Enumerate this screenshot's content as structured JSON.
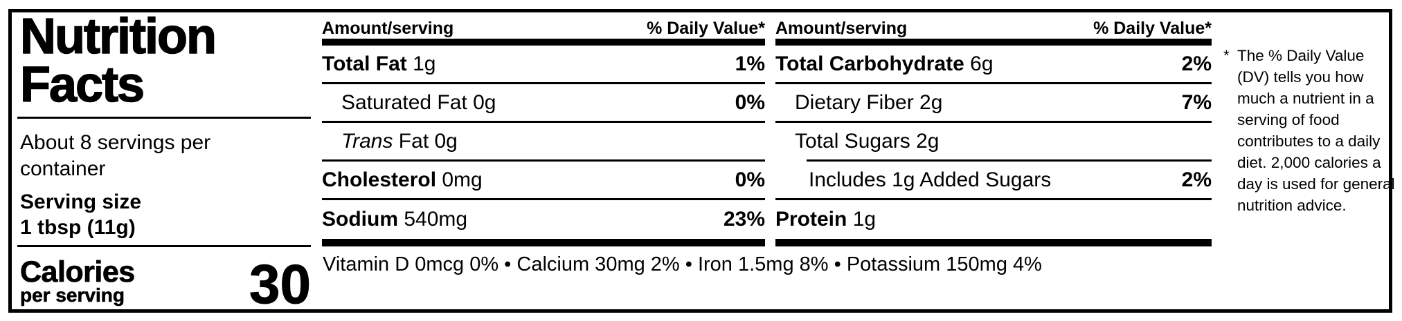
{
  "label": {
    "title": "Nutrition Facts",
    "servings_per_container": "About 8 servings per container",
    "serving_size_label": "Serving size",
    "serving_size_value": "1 tbsp (11g)",
    "calories_label": "Calories",
    "calories_sublabel": "per serving",
    "calories_value": "30"
  },
  "columns": [
    {
      "header_left": "Amount/serving",
      "header_right": "% Daily Value*",
      "rows": [
        {
          "parts": [
            {
              "text": "Total Fat",
              "bold": true
            },
            {
              "text": " 1g"
            }
          ],
          "dv": "1%",
          "indent": 0,
          "divider": "full"
        },
        {
          "parts": [
            {
              "text": "Saturated Fat 0g"
            }
          ],
          "dv": "0%",
          "indent": 1,
          "divider": "full"
        },
        {
          "parts": [
            {
              "text": "Trans",
              "italic": true
            },
            {
              "text": " Fat 0g"
            }
          ],
          "dv": "",
          "indent": 1,
          "divider": "full"
        },
        {
          "parts": [
            {
              "text": "Cholesterol",
              "bold": true
            },
            {
              "text": " 0mg"
            }
          ],
          "dv": "0%",
          "indent": 0,
          "divider": "full"
        },
        {
          "parts": [
            {
              "text": "Sodium",
              "bold": true
            },
            {
              "text": " 540mg"
            }
          ],
          "dv": "23%",
          "indent": 0,
          "divider": "none"
        }
      ]
    },
    {
      "header_left": "Amount/serving",
      "header_right": "% Daily Value*",
      "rows": [
        {
          "parts": [
            {
              "text": "Total Carbohydrate",
              "bold": true
            },
            {
              "text": " 6g"
            }
          ],
          "dv": "2%",
          "indent": 0,
          "divider": "full"
        },
        {
          "parts": [
            {
              "text": "Dietary Fiber 2g"
            }
          ],
          "dv": "7%",
          "indent": 1,
          "divider": "full"
        },
        {
          "parts": [
            {
              "text": "Total Sugars 2g"
            }
          ],
          "dv": "",
          "indent": 1,
          "divider": "indent"
        },
        {
          "parts": [
            {
              "text": "Includes 1g Added Sugars"
            }
          ],
          "dv": "2%",
          "indent": 2,
          "divider": "full"
        },
        {
          "parts": [
            {
              "text": "Protein",
              "bold": true
            },
            {
              "text": " 1g"
            }
          ],
          "dv": "",
          "indent": 0,
          "divider": "none"
        }
      ]
    }
  ],
  "micronutrients": "Vitamin D 0mcg 0% • Calcium 30mg 2% • Iron 1.5mg 8% • Potassium 150mg 4%",
  "footnote": {
    "marker": "*",
    "text": "The % Daily Value (DV) tells you how much a nutrient in a serving of food contributes to a daily diet. 2,000 calories a day is used for general nutrition advice."
  },
  "colors": {
    "foreground": "#000000",
    "background": "#ffffff"
  }
}
